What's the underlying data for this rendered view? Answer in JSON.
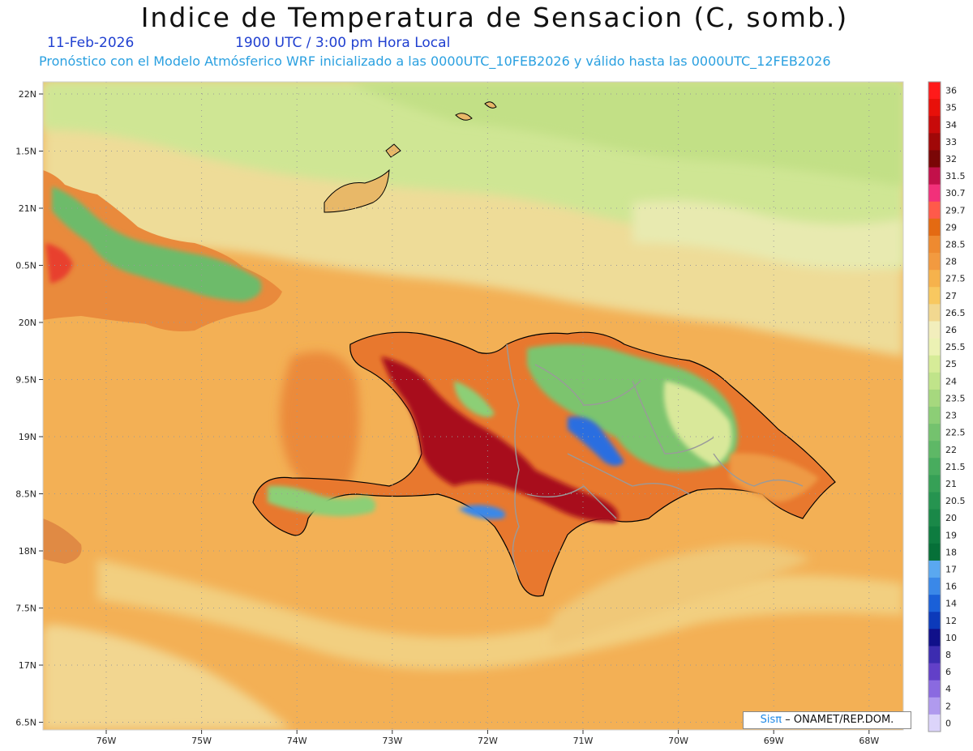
{
  "header": {
    "title": "Indice de Temperatura de Sensacion (C, somb.)",
    "date": "11-Feb-2026",
    "time": "1900 UTC / 3:00 pm Hora Local",
    "model_info": "Pronóstico con el Modelo Atmósferico WRF inicializado a las 0000UTC_10FEB2026 y válido hasta las  0000UTC_12FEB2026"
  },
  "axes": {
    "lat_labels": [
      "22N",
      "1.5N",
      "21N",
      "0.5N",
      "20N",
      "9.5N",
      "19N",
      "8.5N",
      "18N",
      "7.5N",
      "17N",
      "6.5N"
    ],
    "lon_labels": [
      "76W",
      "75W",
      "74W",
      "73W",
      "72W",
      "71W",
      "70W",
      "69W",
      "68W"
    ]
  },
  "legend": {
    "labels": [
      "36",
      "35",
      "34",
      "33",
      "32",
      "31.5",
      "30.7",
      "29.7",
      "29",
      "28.5",
      "28",
      "27.5",
      "27",
      "26.5",
      "26",
      "25.5",
      "25",
      "24",
      "23.5",
      "23",
      "22.5",
      "22",
      "21.5",
      "21",
      "20.5",
      "20",
      "19",
      "18",
      "17",
      "16",
      "14",
      "12",
      "10",
      "8",
      "6",
      "4",
      "2",
      "0"
    ],
    "colors": [
      "#ff1a1a",
      "#e8100a",
      "#c80a0a",
      "#a00808",
      "#7a0606",
      "#c2104a",
      "#f2307a",
      "#ff5a4a",
      "#e46a12",
      "#ee8a30",
      "#f29a40",
      "#f6b24c",
      "#f8c860",
      "#f2d890",
      "#f2eebc",
      "#ecf2b4",
      "#d6ec98",
      "#c0e48a",
      "#a6d87e",
      "#8cce76",
      "#74c26e",
      "#5eb866",
      "#48ac5e",
      "#36a056",
      "#269450",
      "#1a8848",
      "#0e7c40",
      "#067038",
      "#5aa8f0",
      "#3a88e8",
      "#1a60d8",
      "#0c3aba",
      "#10108a",
      "#3c2cb0",
      "#6240c8",
      "#8a6ae0",
      "#b09aee",
      "#dcd4fa"
    ]
  },
  "credit": {
    "brand": "Sisπ",
    "org": "– ONAMET/REP.DOM."
  },
  "colors": {
    "ocean_base": "#f3b055",
    "coastline": "#000000",
    "borders": "#9a9a9a",
    "grid": "#999999"
  }
}
